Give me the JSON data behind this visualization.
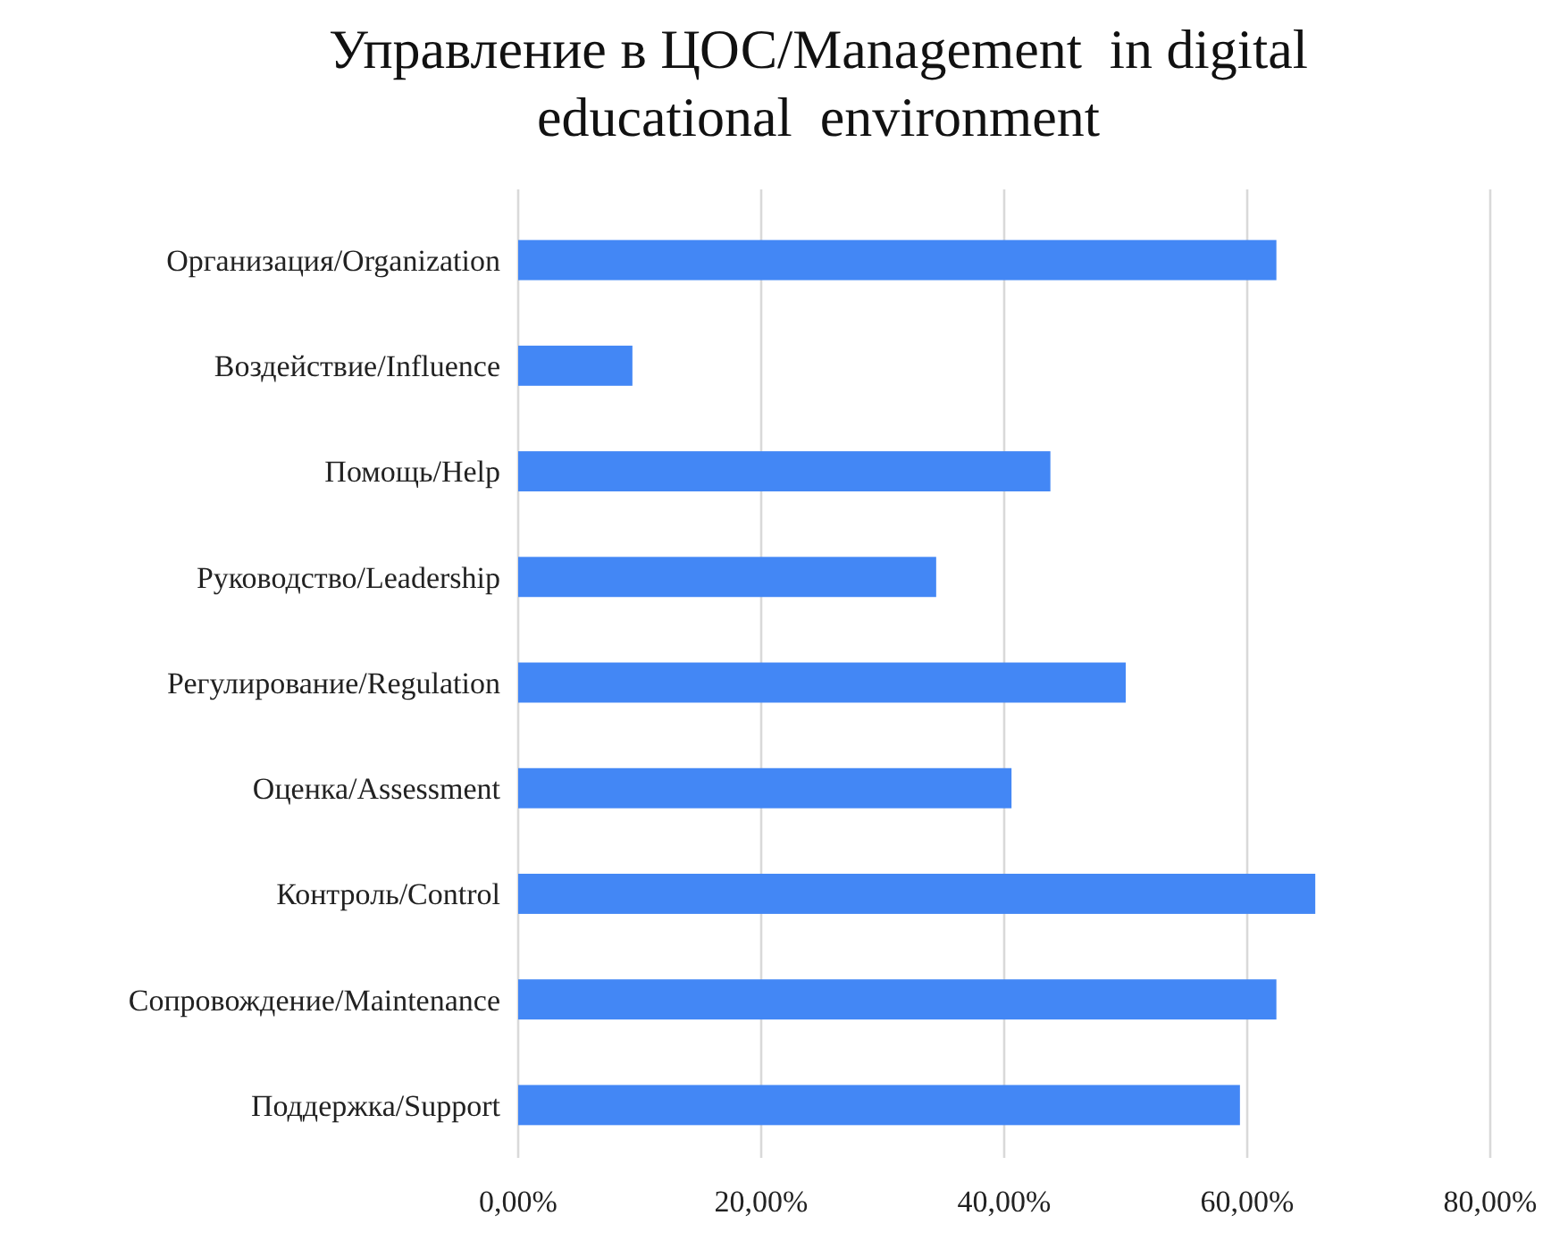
{
  "chart_data": {
    "type": "bar",
    "orientation": "horizontal",
    "title": "Управление в ЦОС/Management  in digital educational  environment",
    "categories": [
      "Организация/Organization",
      "Воздействие/Influence",
      "Помощь/Help",
      "Руководство/Leadership",
      "Регулирование/Regulation",
      "Оценка/Assessment",
      "Контроль/Control",
      "Сопровождение/Maintenance",
      "Поддержка/Support"
    ],
    "values": [
      62.4,
      9.4,
      43.8,
      34.4,
      50.0,
      40.6,
      65.6,
      62.4,
      59.4
    ],
    "color": "#4387f5",
    "xlim": [
      0,
      80
    ],
    "xticks": [
      {
        "value": 0,
        "label": "0,00%"
      },
      {
        "value": 20,
        "label": "20,00%"
      },
      {
        "value": 40,
        "label": "40,00%"
      },
      {
        "value": 60,
        "label": "60,00%"
      },
      {
        "value": 80,
        "label": "80,00%"
      }
    ],
    "grid": "x"
  }
}
